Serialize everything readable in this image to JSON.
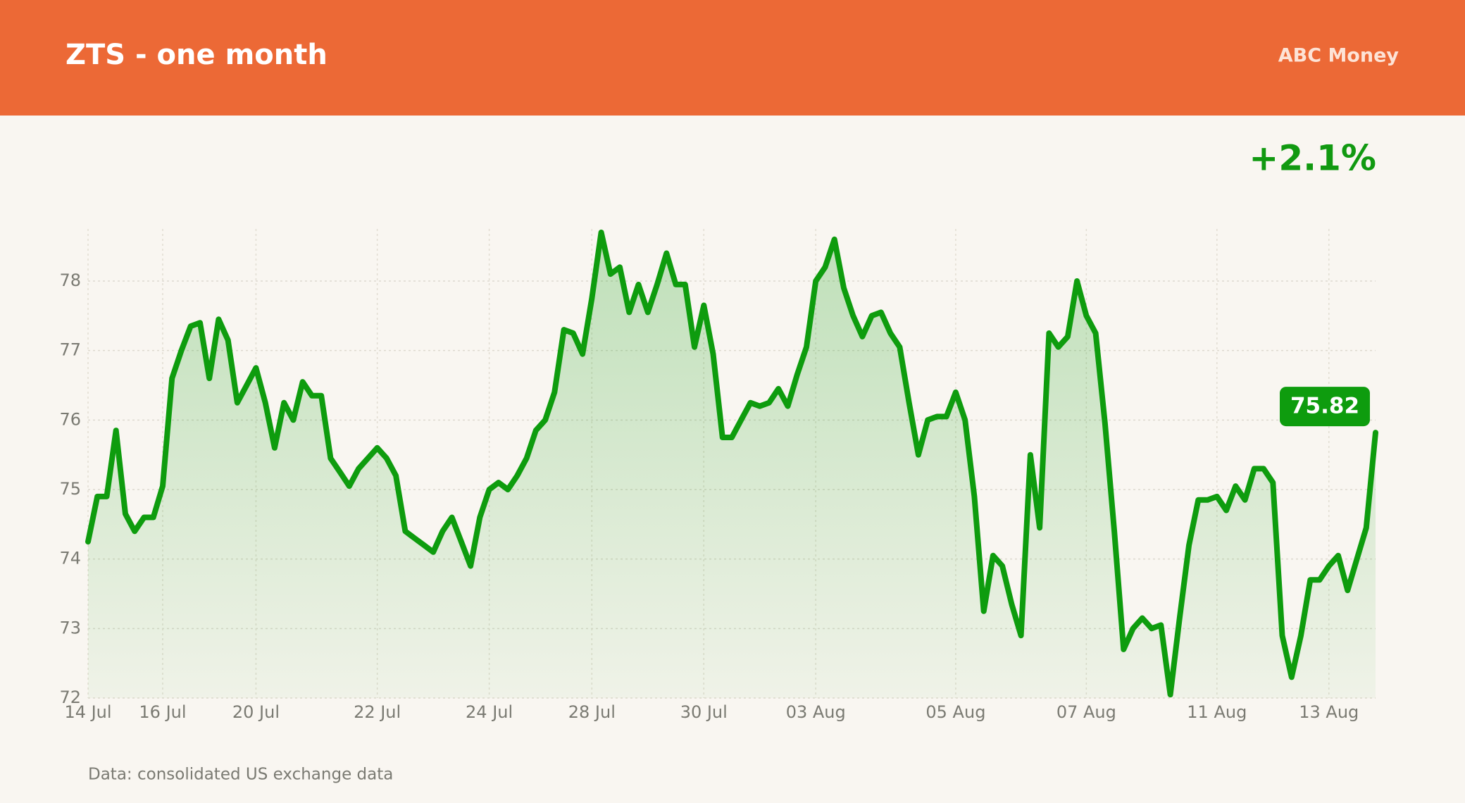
{
  "chart_data": {
    "type": "line",
    "title": "ZTS - one month",
    "publisher": "ABC Money",
    "change": "+2.1%",
    "note": "Data: consolidated US exchange data",
    "color": "#0e9c0e",
    "grid": true,
    "ylim": [
      72,
      78.75
    ],
    "yticks": [
      72,
      73,
      74,
      75,
      76,
      77,
      78
    ],
    "categories": [
      "14 Jul",
      null,
      null,
      null,
      null,
      null,
      null,
      null,
      "16 Jul",
      null,
      null,
      null,
      null,
      null,
      null,
      null,
      null,
      null,
      "20 Jul",
      null,
      null,
      null,
      null,
      null,
      null,
      null,
      null,
      null,
      null,
      null,
      null,
      "22 Jul",
      null,
      null,
      null,
      null,
      null,
      null,
      null,
      null,
      null,
      null,
      null,
      "24 Jul",
      null,
      null,
      null,
      null,
      null,
      null,
      null,
      null,
      null,
      null,
      "28 Jul",
      null,
      null,
      null,
      null,
      null,
      null,
      null,
      null,
      null,
      null,
      null,
      "30 Jul",
      null,
      null,
      null,
      null,
      null,
      null,
      null,
      null,
      null,
      null,
      null,
      "03 Aug",
      null,
      null,
      null,
      null,
      null,
      null,
      null,
      null,
      null,
      null,
      null,
      null,
      null,
      null,
      "05 Aug",
      null,
      null,
      null,
      null,
      null,
      null,
      null,
      null,
      null,
      null,
      null,
      null,
      null,
      "07 Aug",
      null,
      null,
      null,
      null,
      null,
      null,
      null,
      null,
      null,
      null,
      null,
      null,
      null,
      "11 Aug",
      null,
      null,
      null,
      null,
      null,
      null,
      null,
      null,
      null,
      null,
      null,
      "13 Aug",
      null,
      null,
      null,
      null,
      null
    ],
    "values": [
      74.25,
      74.9,
      74.9,
      75.85,
      74.65,
      74.4,
      74.6,
      74.6,
      75.05,
      76.6,
      77.0,
      77.35,
      77.4,
      76.6,
      77.45,
      77.15,
      76.25,
      76.5,
      76.75,
      76.25,
      75.6,
      76.25,
      76.0,
      76.55,
      76.35,
      76.35,
      75.45,
      75.25,
      75.05,
      75.3,
      75.45,
      75.6,
      75.45,
      75.2,
      74.4,
      74.3,
      74.2,
      74.1,
      74.4,
      74.6,
      74.25,
      73.9,
      74.6,
      75.0,
      75.1,
      75.0,
      75.2,
      75.45,
      75.85,
      76.0,
      76.4,
      77.3,
      77.25,
      76.95,
      77.75,
      78.7,
      78.1,
      78.2,
      77.55,
      77.95,
      77.55,
      77.95,
      78.4,
      77.95,
      77.95,
      77.05,
      77.65,
      76.95,
      75.75,
      75.75,
      76.0,
      76.25,
      76.2,
      76.25,
      76.45,
      76.2,
      76.65,
      77.05,
      78.0,
      78.2,
      78.6,
      77.9,
      77.5,
      77.2,
      77.5,
      77.55,
      77.25,
      77.05,
      76.25,
      75.5,
      76.0,
      76.05,
      76.05,
      76.4,
      76.0,
      74.9,
      73.25,
      74.05,
      73.9,
      73.35,
      72.9,
      75.5,
      74.45,
      77.25,
      77.05,
      77.2,
      78.0,
      77.5,
      77.25,
      75.95,
      74.4,
      72.7,
      73.0,
      73.15,
      73.0,
      73.05,
      72.05,
      73.15,
      74.2,
      74.85,
      74.85,
      74.9,
      74.7,
      75.05,
      74.85,
      75.3,
      75.3,
      75.1,
      72.9,
      72.3,
      72.9,
      73.7,
      73.7,
      73.9,
      74.05,
      73.55,
      74.0,
      74.45,
      75.82
    ]
  }
}
